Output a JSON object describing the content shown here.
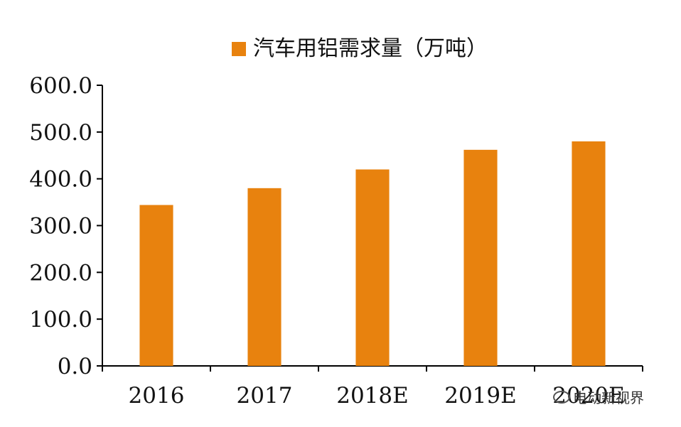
{
  "chart_data": {
    "type": "bar",
    "title": "",
    "xlabel": "",
    "ylabel": "",
    "categories": [
      "2016",
      "2017",
      "2018E",
      "2019E",
      "2020E"
    ],
    "series": [
      {
        "name": "汽车用铝需求量（万吨）",
        "values": [
          344,
          380,
          420,
          462,
          480
        ]
      }
    ],
    "ylim": [
      0,
      600
    ],
    "yticks": [
      0,
      100,
      200,
      300,
      400,
      500,
      600
    ],
    "ytick_labels": [
      "0.0",
      "100.0",
      "200.0",
      "300.0",
      "400.0",
      "500.0",
      "600.0"
    ],
    "legend_position": "top-center",
    "grid": false,
    "bar_color": "#E8820E"
  },
  "watermark": {
    "text": "电动新视界"
  }
}
